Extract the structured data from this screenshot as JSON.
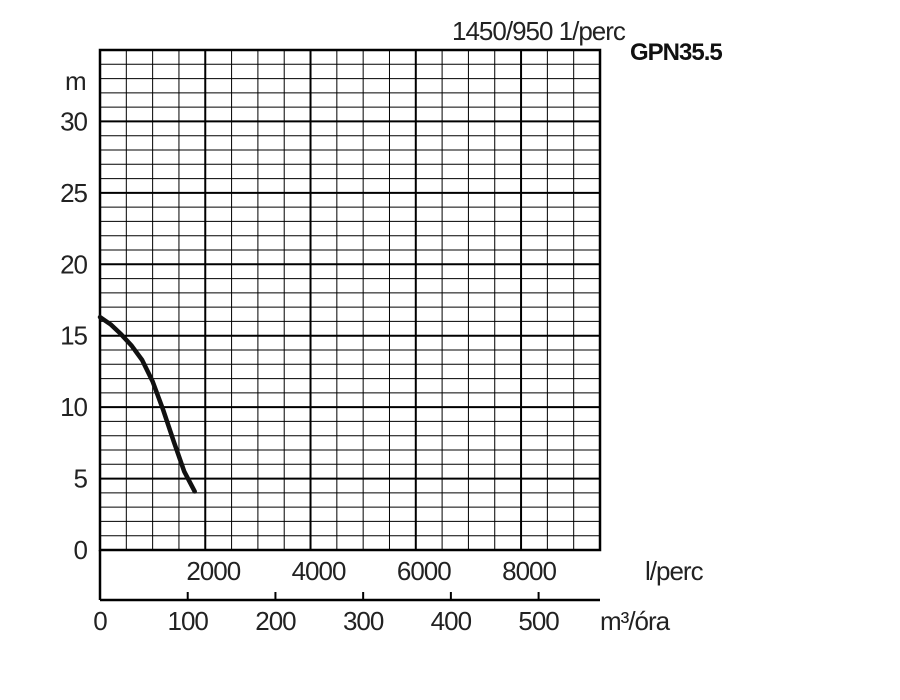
{
  "chart_data": {
    "type": "line",
    "title": "1450/950 1/perc",
    "model": "GPN35.5",
    "ylabel": "m",
    "ylim": [
      0,
      35
    ],
    "y_ticks": [
      0,
      5,
      10,
      15,
      20,
      25,
      30
    ],
    "x_primary": {
      "label": "l/perc",
      "lim": [
        0,
        9500
      ],
      "ticks": [
        2000,
        4000,
        6000,
        8000
      ]
    },
    "x_secondary": {
      "label": "m³/óra",
      "lim": [
        0,
        570
      ],
      "ticks": [
        0,
        100,
        200,
        300,
        400,
        500
      ]
    },
    "grid": true,
    "series": [
      {
        "x": [
          0,
          200,
          400,
          600,
          800,
          1000,
          1200,
          1400,
          1600,
          1800
        ],
        "y": [
          16.3,
          15.8,
          15.1,
          14.3,
          13.3,
          11.8,
          9.8,
          7.6,
          5.5,
          4.1
        ]
      }
    ],
    "colors": {
      "line": "#111111",
      "grid": "#000000",
      "text": "#222222"
    }
  }
}
